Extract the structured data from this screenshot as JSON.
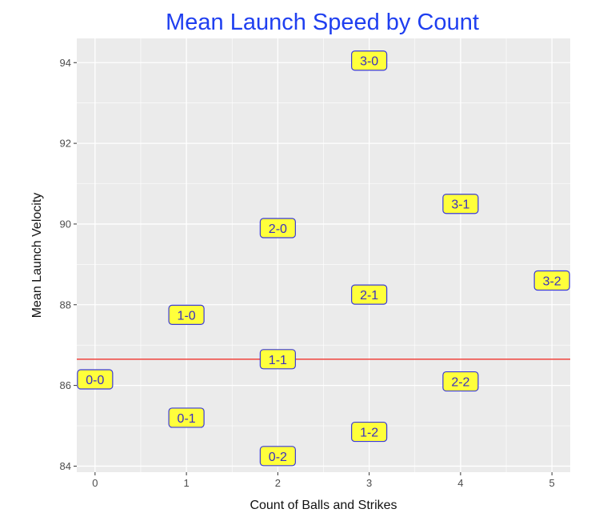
{
  "chart_data": {
    "type": "scatter",
    "title": "Mean Launch Speed by Count",
    "xlabel": "Count of Balls and Strikes",
    "ylabel": "Mean Launch Velocity",
    "xlim": [
      -0.2,
      5.2
    ],
    "ylim": [
      83.85,
      94.6
    ],
    "x_ticks": [
      0,
      1,
      2,
      3,
      4,
      5
    ],
    "y_ticks": [
      84,
      86,
      88,
      90,
      92,
      94
    ],
    "grid": true,
    "points": [
      {
        "label": "0-0",
        "x": 0,
        "y": 86.15
      },
      {
        "label": "1-0",
        "x": 1,
        "y": 87.75
      },
      {
        "label": "0-1",
        "x": 1,
        "y": 85.2
      },
      {
        "label": "2-0",
        "x": 2,
        "y": 89.9
      },
      {
        "label": "1-1",
        "x": 2,
        "y": 86.65
      },
      {
        "label": "0-2",
        "x": 2,
        "y": 84.25
      },
      {
        "label": "3-0",
        "x": 3,
        "y": 94.05
      },
      {
        "label": "2-1",
        "x": 3,
        "y": 88.25
      },
      {
        "label": "1-2",
        "x": 3,
        "y": 84.85
      },
      {
        "label": "3-1",
        "x": 4,
        "y": 90.5
      },
      {
        "label": "2-2",
        "x": 4,
        "y": 86.1
      },
      {
        "label": "3-2",
        "x": 5,
        "y": 88.6
      }
    ],
    "reference_line": {
      "y": 86.65,
      "color": "#f0504a"
    },
    "colors": {
      "title": "#1f3ff0",
      "panel_background": "#ebebeb",
      "grid": "#ffffff",
      "label_fill": "#ffff3b",
      "label_border": "#3b3bd6",
      "label_text": "#3a2fc0"
    }
  }
}
